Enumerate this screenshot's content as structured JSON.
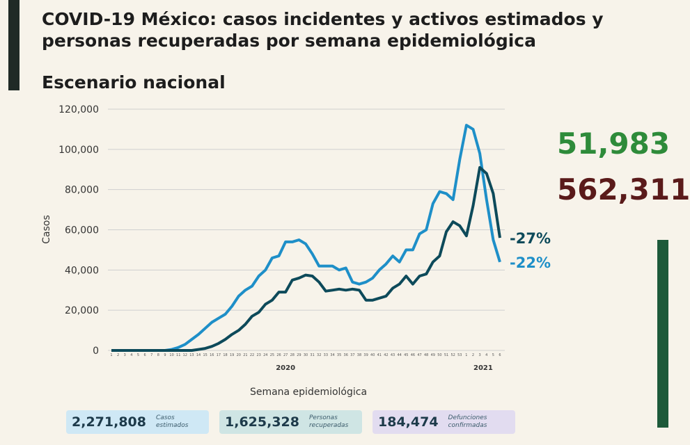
{
  "chart_data": {
    "type": "line",
    "title": "COVID-19 México: casos incidentes y activos estimados y personas recuperadas por semana epidemiológica",
    "subtitle": "Escenario nacional",
    "y_label": "Casos",
    "x_label": "Semana epidemiológica",
    "year_labels": [
      "2020",
      "2021"
    ],
    "categories": [
      "1",
      "2",
      "3",
      "4",
      "5",
      "6",
      "7",
      "8",
      "9",
      "10",
      "11",
      "12",
      "13",
      "14",
      "15",
      "16",
      "17",
      "18",
      "19",
      "20",
      "21",
      "22",
      "23",
      "24",
      "25",
      "26",
      "27",
      "28",
      "29",
      "30",
      "31",
      "32",
      "33",
      "34",
      "35",
      "36",
      "37",
      "38",
      "39",
      "40",
      "41",
      "42",
      "43",
      "44",
      "45",
      "46",
      "47",
      "48",
      "49",
      "50",
      "51",
      "52",
      "53",
      "1",
      "2",
      "3",
      "4",
      "5",
      "6"
    ],
    "series": [
      {
        "color": "#1e8fc8",
        "end_label": "-22%",
        "values": [
          0,
          0,
          0,
          0,
          0,
          0,
          0,
          0,
          0,
          500,
          1500,
          3000,
          5500,
          8000,
          11000,
          14000,
          16000,
          18000,
          22000,
          27000,
          30000,
          32000,
          37000,
          40000,
          46000,
          47000,
          54000,
          54000,
          55000,
          53000,
          48000,
          42000,
          42000,
          42000,
          40000,
          41000,
          34000,
          33000,
          34000,
          36000,
          40000,
          43000,
          47000,
          44000,
          50000,
          50000,
          58000,
          60000,
          73000,
          79000,
          78000,
          75000,
          95000,
          112000,
          110000,
          98000,
          75000,
          55000,
          44000
        ]
      },
      {
        "color": "#0d4a5a",
        "end_label": "-27%",
        "values": [
          0,
          0,
          0,
          0,
          0,
          0,
          0,
          0,
          0,
          0,
          0,
          0,
          0,
          500,
          1000,
          2000,
          3500,
          5500,
          8000,
          10000,
          13000,
          17000,
          19000,
          23000,
          25000,
          29000,
          29000,
          35000,
          36000,
          37500,
          37000,
          34000,
          29500,
          30000,
          30500,
          30000,
          30500,
          30000,
          25000,
          25000,
          26000,
          27000,
          31000,
          33000,
          37000,
          33000,
          37000,
          38000,
          44000,
          47000,
          59000,
          64000,
          62000,
          57000,
          72000,
          91000,
          88000,
          78000,
          56000
        ]
      }
    ],
    "ylim": [
      0,
      120000
    ],
    "yticks": [
      0,
      {
        "value": 20000,
        "label": "20,000"
      },
      {
        "value": 40000,
        "label": "40,000"
      },
      {
        "value": 60000,
        "label": "60,000"
      },
      {
        "value": 80000,
        "label": "80,000"
      },
      {
        "value": 100000,
        "label": "100,000"
      },
      {
        "value": 120000,
        "label": "120,000"
      }
    ],
    "grid": true
  },
  "headline_numbers": [
    {
      "text": "51,983",
      "color": "#2e8b3a"
    },
    {
      "text": "562,311",
      "color": "#5a1a1a"
    }
  ],
  "summary_boxes": [
    {
      "value": "2,271,808",
      "label": "Casos estimados",
      "color": "#cfe8f5"
    },
    {
      "value": "1,625,328",
      "label": "Personas recuperadas",
      "color": "#cfe5e4"
    },
    {
      "value": "184,474",
      "label": "Defunciones confirmadas",
      "color": "#e2dcf0"
    }
  ]
}
